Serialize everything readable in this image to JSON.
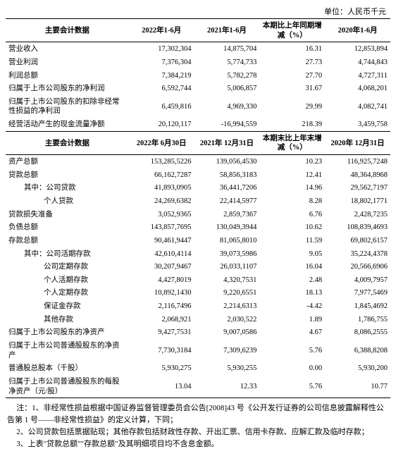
{
  "unit_text": "单位：人民币千元",
  "table1": {
    "headers": [
      "主要会计数据",
      "2022年1-6月",
      "2021年1-6月",
      "本期比上年同期增减（%）",
      "2020年1-6月"
    ],
    "col_widths": [
      "32%",
      "17%",
      "17%",
      "17%",
      "17%"
    ],
    "rows": [
      {
        "label": "营业收入",
        "indent": 0,
        "v": [
          "17,302,304",
          "14,875,704",
          "16.31",
          "12,853,894"
        ]
      },
      {
        "label": "营业利润",
        "indent": 0,
        "v": [
          "7,376,304",
          "5,774,733",
          "27.73",
          "4,744,843"
        ]
      },
      {
        "label": "利润总额",
        "indent": 0,
        "v": [
          "7,384,219",
          "5,782,278",
          "27.70",
          "4,727,311"
        ]
      },
      {
        "label": "归属于上市公司股东的净利润",
        "indent": 0,
        "v": [
          "6,592,744",
          "5,006,857",
          "31.67",
          "4,068,201"
        ]
      },
      {
        "label": "归属于上市公司股东的扣除非经常性损益的净利润",
        "indent": 0,
        "v": [
          "6,459,816",
          "4,969,330",
          "29.99",
          "4,082,741"
        ]
      },
      {
        "label": "经营活动产生的现金流量净额",
        "indent": 0,
        "v": [
          "20,120,117",
          "-16,994,559",
          "218.39",
          "3,459,758"
        ]
      }
    ]
  },
  "table2": {
    "headers": [
      "主要会计数据",
      "2022年\n6月30日",
      "2021年\n12月31日",
      "本期末比上年末增减（%）",
      "2020年\n12月31日"
    ],
    "rows": [
      {
        "label": "资产总额",
        "indent": 0,
        "v": [
          "153,285,5226",
          "139,056,4530",
          "10.23",
          "116,925,7248"
        ]
      },
      {
        "label": "贷款总额",
        "indent": 0,
        "v": [
          "66,162,7287",
          "58,856,3183",
          "12.41",
          "48,364,8968"
        ]
      },
      {
        "label": "其中：公司贷款",
        "indent": 1,
        "v": [
          "41,893,0905",
          "36,441,7206",
          "14.96",
          "29,562,7197"
        ]
      },
      {
        "label": "个人贷款",
        "indent": 2,
        "v": [
          "24,269,6382",
          "22,414,5977",
          "8.28",
          "18,802,1771"
        ]
      },
      {
        "label": "贷款损失准备",
        "indent": 0,
        "v": [
          "3,052,9365",
          "2,859,7367",
          "6.76",
          "2,428,7235"
        ]
      },
      {
        "label": "负债总额",
        "indent": 0,
        "v": [
          "143,857,7695",
          "130,049,3944",
          "10.62",
          "108,839,4693"
        ]
      },
      {
        "label": "存款总额",
        "indent": 0,
        "v": [
          "90,461,9447",
          "81,065,8010",
          "11.59",
          "69,802,6157"
        ]
      },
      {
        "label": "其中：公司活期存款",
        "indent": 1,
        "v": [
          "42,610,4114",
          "39,073,5986",
          "9.05",
          "35,224,4378"
        ]
      },
      {
        "label": "公司定期存款",
        "indent": 2,
        "v": [
          "30,207,9467",
          "26,033,1107",
          "16.04",
          "20,566,6906"
        ]
      },
      {
        "label": "个人活期存款",
        "indent": 2,
        "v": [
          "4,427,8019",
          "4,320,7531",
          "2.48",
          "4,009,7957"
        ]
      },
      {
        "label": "个人定期存款",
        "indent": 2,
        "v": [
          "10,892,1430",
          "9,220,6551",
          "18.13",
          "7,977,5469"
        ]
      },
      {
        "label": "保证金存款",
        "indent": 2,
        "v": [
          "2,116,7496",
          "2,214,6313",
          "-4.42",
          "1,845,4692"
        ]
      },
      {
        "label": "其他存款",
        "indent": 2,
        "v": [
          "2,068,921",
          "2,030,522",
          "1.89",
          "1,786,755"
        ]
      },
      {
        "label": "归属于上市公司股东的净资产",
        "indent": 0,
        "v": [
          "9,427,7531",
          "9,007,0586",
          "4.67",
          "8,086,2555"
        ]
      },
      {
        "label": "归属于上市公司普通股股东的净资产",
        "indent": 0,
        "v": [
          "7,730,3184",
          "7,309,6239",
          "5.76",
          "6,388,8208"
        ]
      },
      {
        "label": "普通股总股本（千股）",
        "indent": 0,
        "v": [
          "5,930,275",
          "5,930,255",
          "0.00",
          "5,930,200"
        ]
      },
      {
        "label": "归属于上市公司普通股股东的每股净资产（元/股）",
        "indent": 0,
        "v": [
          "13.04",
          "12.33",
          "5.76",
          "10.77"
        ]
      }
    ]
  },
  "notes": [
    "注：1、非经常性损益根据中国证券监督管理委员会公告[2008]43 号《公开发行证券的公司信息披露解释性公告第 1 号——非经常性损益》的定义计算，下同；",
    "2、公司贷款包括票据贴现；其他存款包括财政性存款、开出汇票、信用卡存款、应解汇款及临时存款；",
    "3、上表\"贷款总额\"\"存款总额\"及其明细项目均不含息金额。"
  ]
}
